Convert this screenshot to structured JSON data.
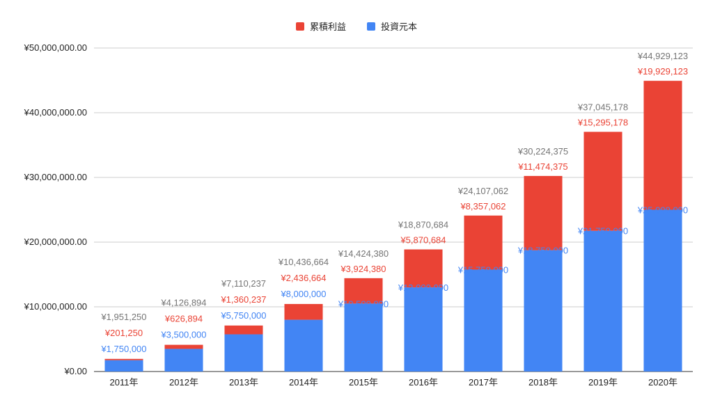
{
  "chart_data": {
    "type": "bar",
    "stacked": true,
    "categories": [
      "2011年",
      "2012年",
      "2013年",
      "2014年",
      "2015年",
      "2016年",
      "2017年",
      "2018年",
      "2019年",
      "2020年"
    ],
    "series": [
      {
        "name": "投資元本",
        "color": "#4285f4",
        "label_color": "#4285f4",
        "values": [
          1750000,
          3500000,
          5750000,
          8000000,
          10500000,
          13000000,
          15750000,
          18750000,
          21750000,
          25000000
        ],
        "labels": [
          "¥1,750,000",
          "¥3,500,000",
          "¥5,750,000",
          "¥8,000,000",
          "¥10,500,000",
          "¥13,000,000",
          "¥15,750,000",
          "¥18,750,000",
          "¥21,750,000",
          "¥25,000,000"
        ]
      },
      {
        "name": "累積利益",
        "color": "#ea4335",
        "label_color": "#ea4335",
        "values": [
          201250,
          626894,
          1360237,
          2436664,
          3924380,
          5870684,
          8357062,
          11474375,
          15295178,
          19929123
        ],
        "labels": [
          "¥201,250",
          "¥626,894",
          "¥1,360,237",
          "¥2,436,664",
          "¥3,924,380",
          "¥5,870,684",
          "¥8,357,062",
          "¥11,474,375",
          "¥15,295,178",
          "¥19,929,123"
        ]
      }
    ],
    "totals": {
      "color": "#757575",
      "values": [
        1951250,
        4126894,
        7110237,
        10436664,
        14424380,
        18870684,
        24107062,
        30224375,
        37045178,
        44929123
      ],
      "labels": [
        "¥1,951,250",
        "¥4,126,894",
        "¥7,110,237",
        "¥10,436,664",
        "¥14,424,380",
        "¥18,870,684",
        "¥24,107,062",
        "¥30,224,375",
        "¥37,045,178",
        "¥44,929,123"
      ]
    },
    "ylim": [
      0,
      50000000
    ],
    "yticks": [
      0,
      10000000,
      20000000,
      30000000,
      40000000,
      50000000
    ],
    "ytick_labels": [
      "¥0.00",
      "¥10,000,000.00",
      "¥20,000,000.00",
      "¥30,000,000.00",
      "¥40,000,000.00",
      "¥50,000,000.00"
    ],
    "legend_order": [
      "累積利益",
      "投資元本"
    ],
    "legend_position": "top-center",
    "grid": true,
    "title": "",
    "xlabel": "",
    "ylabel": ""
  }
}
